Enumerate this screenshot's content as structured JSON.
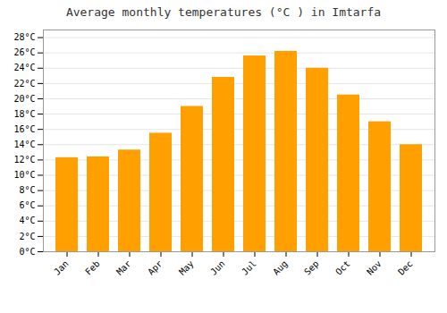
{
  "chart_data": {
    "type": "bar",
    "title": "Average monthly temperatures (°C ) in Imtarfa",
    "categories": [
      "Jan",
      "Feb",
      "Mar",
      "Apr",
      "May",
      "Jun",
      "Jul",
      "Aug",
      "Sep",
      "Oct",
      "Nov",
      "Dec"
    ],
    "values": [
      12.3,
      12.4,
      13.3,
      15.5,
      19.0,
      22.8,
      25.6,
      26.2,
      24.0,
      20.5,
      17.0,
      14.0
    ],
    "color": "#FFA000",
    "ylim": [
      0,
      29
    ],
    "yticks": [
      {
        "value": 0,
        "label": "0°C"
      },
      {
        "value": 2,
        "label": "2°C"
      },
      {
        "value": 4,
        "label": "4°C"
      },
      {
        "value": 6,
        "label": "6°C"
      },
      {
        "value": 8,
        "label": "8°C"
      },
      {
        "value": 10,
        "label": "10°C"
      },
      {
        "value": 12,
        "label": "12°C"
      },
      {
        "value": 14,
        "label": "14°C"
      },
      {
        "value": 16,
        "label": "16°C"
      },
      {
        "value": 18,
        "label": "18°C"
      },
      {
        "value": 20,
        "label": "20°C"
      },
      {
        "value": 22,
        "label": "22°C"
      },
      {
        "value": 24,
        "label": "24°C"
      },
      {
        "value": 26,
        "label": "26°C"
      },
      {
        "value": 28,
        "label": "28°C"
      }
    ],
    "grid": true
  }
}
